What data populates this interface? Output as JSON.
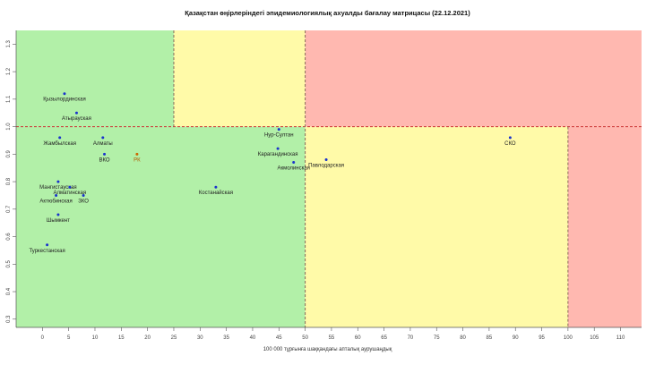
{
  "chart_data": {
    "type": "scatter",
    "title": "Қазақстан өңірлеріндегі эпидемиологиялық ахуалды бағалау матрицасы  (22.12.2021)",
    "xlabel": "100 000 тұрғынға шаққандағы апталық аурушаңдық",
    "ylabel": "",
    "xlim": [
      -5,
      114
    ],
    "ylim": [
      0.27,
      1.35
    ],
    "x_ticks": [
      0,
      5,
      10,
      15,
      20,
      25,
      30,
      35,
      40,
      45,
      50,
      55,
      60,
      65,
      70,
      75,
      80,
      85,
      90,
      95,
      100,
      105,
      110
    ],
    "y_ticks": [
      0.3,
      0.4,
      0.5,
      0.6,
      0.7,
      0.8,
      0.9,
      1.0,
      1.1,
      1.2,
      1.3
    ],
    "grid": false,
    "zones": [
      {
        "x": [
          -5,
          25
        ],
        "y": [
          1.0,
          1.35
        ],
        "color": "#b2f0a8"
      },
      {
        "x": [
          25,
          50
        ],
        "y": [
          1.0,
          1.35
        ],
        "color": "#fffaa8"
      },
      {
        "x": [
          50,
          114
        ],
        "y": [
          1.0,
          1.35
        ],
        "color": "#ffb8b0"
      },
      {
        "x": [
          -5,
          50
        ],
        "y": [
          0.27,
          1.0
        ],
        "color": "#b2f0a8"
      },
      {
        "x": [
          50,
          100
        ],
        "y": [
          0.27,
          1.0
        ],
        "color": "#fffaa8"
      },
      {
        "x": [
          100,
          114
        ],
        "y": [
          0.27,
          1.0
        ],
        "color": "#ffb8b0"
      }
    ],
    "reference_lines": [
      {
        "axis": "y",
        "value": 1.0,
        "color": "#cc3333"
      },
      {
        "axis": "x",
        "value": 50,
        "color": "#8a6a5a"
      },
      {
        "axis": "x",
        "value": 25,
        "color": "#8a6a5a",
        "y_from": 1.0
      },
      {
        "axis": "x",
        "value": 100,
        "color": "#8a6a5a",
        "y_to": 1.0
      }
    ],
    "points": [
      {
        "label": "Қызылординская",
        "x": 4.2,
        "y": 1.12,
        "color": "#1a33cc"
      },
      {
        "label": "Атырауская",
        "x": 6.5,
        "y": 1.05,
        "color": "#1a33cc"
      },
      {
        "label": "Жамбылская",
        "x": 3.3,
        "y": 0.96,
        "color": "#1a33cc"
      },
      {
        "label": "Алматы",
        "x": 11.5,
        "y": 0.96,
        "color": "#1a33cc"
      },
      {
        "label": "ВКО",
        "x": 11.8,
        "y": 0.9,
        "color": "#1a33cc"
      },
      {
        "label": "РК",
        "x": 18.0,
        "y": 0.9,
        "color": "#cc6600"
      },
      {
        "label": "Мангистауская",
        "x": 3.0,
        "y": 0.8,
        "color": "#1a33cc"
      },
      {
        "label": "Алматинская",
        "x": 5.2,
        "y": 0.78,
        "color": "#1a33cc"
      },
      {
        "label": "Актюбинская",
        "x": 2.6,
        "y": 0.75,
        "color": "#1a33cc"
      },
      {
        "label": "ЗКО",
        "x": 7.8,
        "y": 0.75,
        "color": "#1a33cc"
      },
      {
        "label": "Шымкент",
        "x": 3.0,
        "y": 0.68,
        "color": "#1a33cc"
      },
      {
        "label": "Туркестанская",
        "x": 0.9,
        "y": 0.57,
        "color": "#1a33cc"
      },
      {
        "label": "Нур-Султан",
        "x": 45.0,
        "y": 0.99,
        "color": "#1a33cc"
      },
      {
        "label": "Карагандинская",
        "x": 44.8,
        "y": 0.92,
        "color": "#1a33cc"
      },
      {
        "label": "Акмолинская",
        "x": 47.8,
        "y": 0.87,
        "color": "#1a33cc"
      },
      {
        "label": "Костанайская",
        "x": 33.0,
        "y": 0.78,
        "color": "#1a33cc"
      },
      {
        "label": "Павлодарская",
        "x": 54.0,
        "y": 0.88,
        "color": "#1a33cc"
      },
      {
        "label": "СКО",
        "x": 89.0,
        "y": 0.96,
        "color": "#1a33cc"
      }
    ]
  }
}
